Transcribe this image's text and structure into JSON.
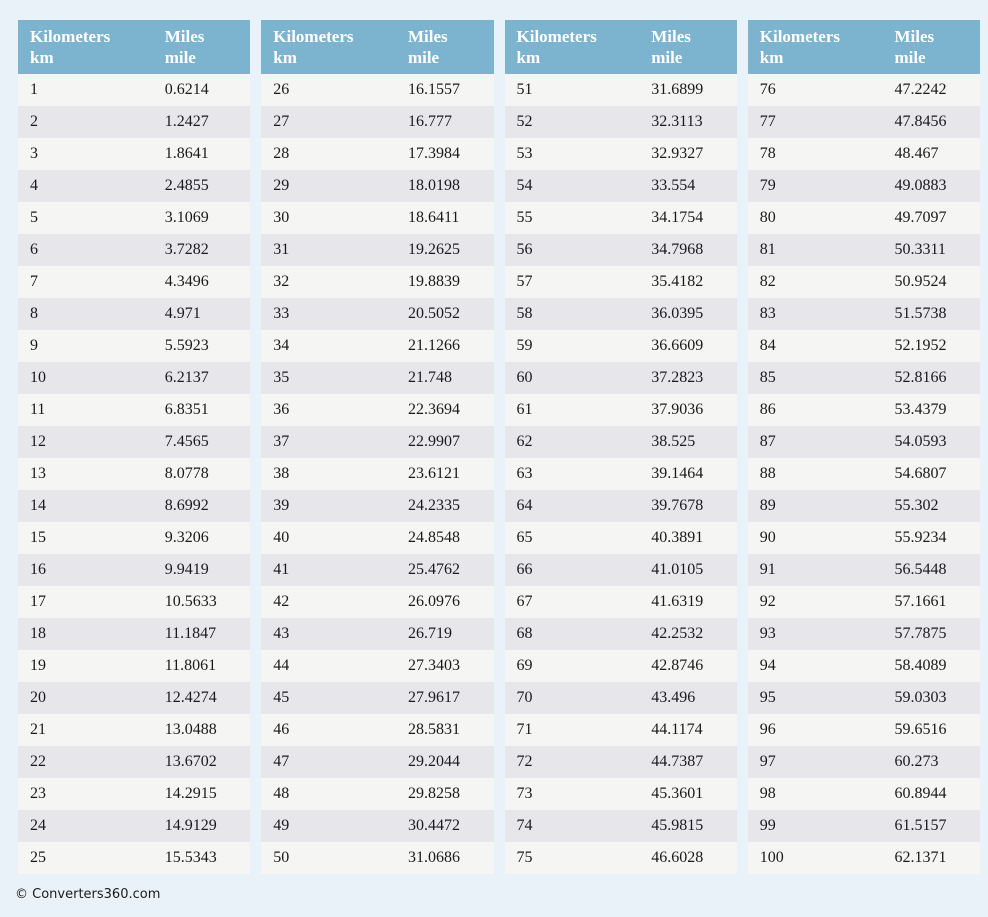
{
  "page": {
    "footer_text": "© Converters360.com"
  },
  "colors": {
    "page_bg": "#E9F2F8",
    "header_bg": "#7CB3CE",
    "header_text": "#FFFFFF",
    "row_odd_bg": "#F5F5F3",
    "row_even_bg": "#E7E7EB",
    "cell_text": "#1A1A1A"
  },
  "table_header": {
    "kilometers_label": "Kilometers",
    "kilometers_unit": "km",
    "miles_label": "Miles",
    "miles_unit": "mile"
  },
  "tables": [
    {
      "rows": [
        {
          "km": "1",
          "mile": "0.6214"
        },
        {
          "km": "2",
          "mile": "1.2427"
        },
        {
          "km": "3",
          "mile": "1.8641"
        },
        {
          "km": "4",
          "mile": "2.4855"
        },
        {
          "km": "5",
          "mile": "3.1069"
        },
        {
          "km": "6",
          "mile": "3.7282"
        },
        {
          "km": "7",
          "mile": "4.3496"
        },
        {
          "km": "8",
          "mile": "4.971"
        },
        {
          "km": "9",
          "mile": "5.5923"
        },
        {
          "km": "10",
          "mile": "6.2137"
        },
        {
          "km": "11",
          "mile": "6.8351"
        },
        {
          "km": "12",
          "mile": "7.4565"
        },
        {
          "km": "13",
          "mile": "8.0778"
        },
        {
          "km": "14",
          "mile": "8.6992"
        },
        {
          "km": "15",
          "mile": "9.3206"
        },
        {
          "km": "16",
          "mile": "9.9419"
        },
        {
          "km": "17",
          "mile": "10.5633"
        },
        {
          "km": "18",
          "mile": "11.1847"
        },
        {
          "km": "19",
          "mile": "11.8061"
        },
        {
          "km": "20",
          "mile": "12.4274"
        },
        {
          "km": "21",
          "mile": "13.0488"
        },
        {
          "km": "22",
          "mile": "13.6702"
        },
        {
          "km": "23",
          "mile": "14.2915"
        },
        {
          "km": "24",
          "mile": "14.9129"
        },
        {
          "km": "25",
          "mile": "15.5343"
        }
      ]
    },
    {
      "rows": [
        {
          "km": "26",
          "mile": "16.1557"
        },
        {
          "km": "27",
          "mile": "16.777"
        },
        {
          "km": "28",
          "mile": "17.3984"
        },
        {
          "km": "29",
          "mile": "18.0198"
        },
        {
          "km": "30",
          "mile": "18.6411"
        },
        {
          "km": "31",
          "mile": "19.2625"
        },
        {
          "km": "32",
          "mile": "19.8839"
        },
        {
          "km": "33",
          "mile": "20.5052"
        },
        {
          "km": "34",
          "mile": "21.1266"
        },
        {
          "km": "35",
          "mile": "21.748"
        },
        {
          "km": "36",
          "mile": "22.3694"
        },
        {
          "km": "37",
          "mile": "22.9907"
        },
        {
          "km": "38",
          "mile": "23.6121"
        },
        {
          "km": "39",
          "mile": "24.2335"
        },
        {
          "km": "40",
          "mile": "24.8548"
        },
        {
          "km": "41",
          "mile": "25.4762"
        },
        {
          "km": "42",
          "mile": "26.0976"
        },
        {
          "km": "43",
          "mile": "26.719"
        },
        {
          "km": "44",
          "mile": "27.3403"
        },
        {
          "km": "45",
          "mile": "27.9617"
        },
        {
          "km": "46",
          "mile": "28.5831"
        },
        {
          "km": "47",
          "mile": "29.2044"
        },
        {
          "km": "48",
          "mile": "29.8258"
        },
        {
          "km": "49",
          "mile": "30.4472"
        },
        {
          "km": "50",
          "mile": "31.0686"
        }
      ]
    },
    {
      "rows": [
        {
          "km": "51",
          "mile": "31.6899"
        },
        {
          "km": "52",
          "mile": "32.3113"
        },
        {
          "km": "53",
          "mile": "32.9327"
        },
        {
          "km": "54",
          "mile": "33.554"
        },
        {
          "km": "55",
          "mile": "34.1754"
        },
        {
          "km": "56",
          "mile": "34.7968"
        },
        {
          "km": "57",
          "mile": "35.4182"
        },
        {
          "km": "58",
          "mile": "36.0395"
        },
        {
          "km": "59",
          "mile": "36.6609"
        },
        {
          "km": "60",
          "mile": "37.2823"
        },
        {
          "km": "61",
          "mile": "37.9036"
        },
        {
          "km": "62",
          "mile": "38.525"
        },
        {
          "km": "63",
          "mile": "39.1464"
        },
        {
          "km": "64",
          "mile": "39.7678"
        },
        {
          "km": "65",
          "mile": "40.3891"
        },
        {
          "km": "66",
          "mile": "41.0105"
        },
        {
          "km": "67",
          "mile": "41.6319"
        },
        {
          "km": "68",
          "mile": "42.2532"
        },
        {
          "km": "69",
          "mile": "42.8746"
        },
        {
          "km": "70",
          "mile": "43.496"
        },
        {
          "km": "71",
          "mile": "44.1174"
        },
        {
          "km": "72",
          "mile": "44.7387"
        },
        {
          "km": "73",
          "mile": "45.3601"
        },
        {
          "km": "74",
          "mile": "45.9815"
        },
        {
          "km": "75",
          "mile": "46.6028"
        }
      ]
    },
    {
      "rows": [
        {
          "km": "76",
          "mile": "47.2242"
        },
        {
          "km": "77",
          "mile": "47.8456"
        },
        {
          "km": "78",
          "mile": "48.467"
        },
        {
          "km": "79",
          "mile": "49.0883"
        },
        {
          "km": "80",
          "mile": "49.7097"
        },
        {
          "km": "81",
          "mile": "50.3311"
        },
        {
          "km": "82",
          "mile": "50.9524"
        },
        {
          "km": "83",
          "mile": "51.5738"
        },
        {
          "km": "84",
          "mile": "52.1952"
        },
        {
          "km": "85",
          "mile": "52.8166"
        },
        {
          "km": "86",
          "mile": "53.4379"
        },
        {
          "km": "87",
          "mile": "54.0593"
        },
        {
          "km": "88",
          "mile": "54.6807"
        },
        {
          "km": "89",
          "mile": "55.302"
        },
        {
          "km": "90",
          "mile": "55.9234"
        },
        {
          "km": "91",
          "mile": "56.5448"
        },
        {
          "km": "92",
          "mile": "57.1661"
        },
        {
          "km": "93",
          "mile": "57.7875"
        },
        {
          "km": "94",
          "mile": "58.4089"
        },
        {
          "km": "95",
          "mile": "59.0303"
        },
        {
          "km": "96",
          "mile": "59.6516"
        },
        {
          "km": "97",
          "mile": "60.273"
        },
        {
          "km": "98",
          "mile": "60.8944"
        },
        {
          "km": "99",
          "mile": "61.5157"
        },
        {
          "km": "100",
          "mile": "62.1371"
        }
      ]
    }
  ]
}
